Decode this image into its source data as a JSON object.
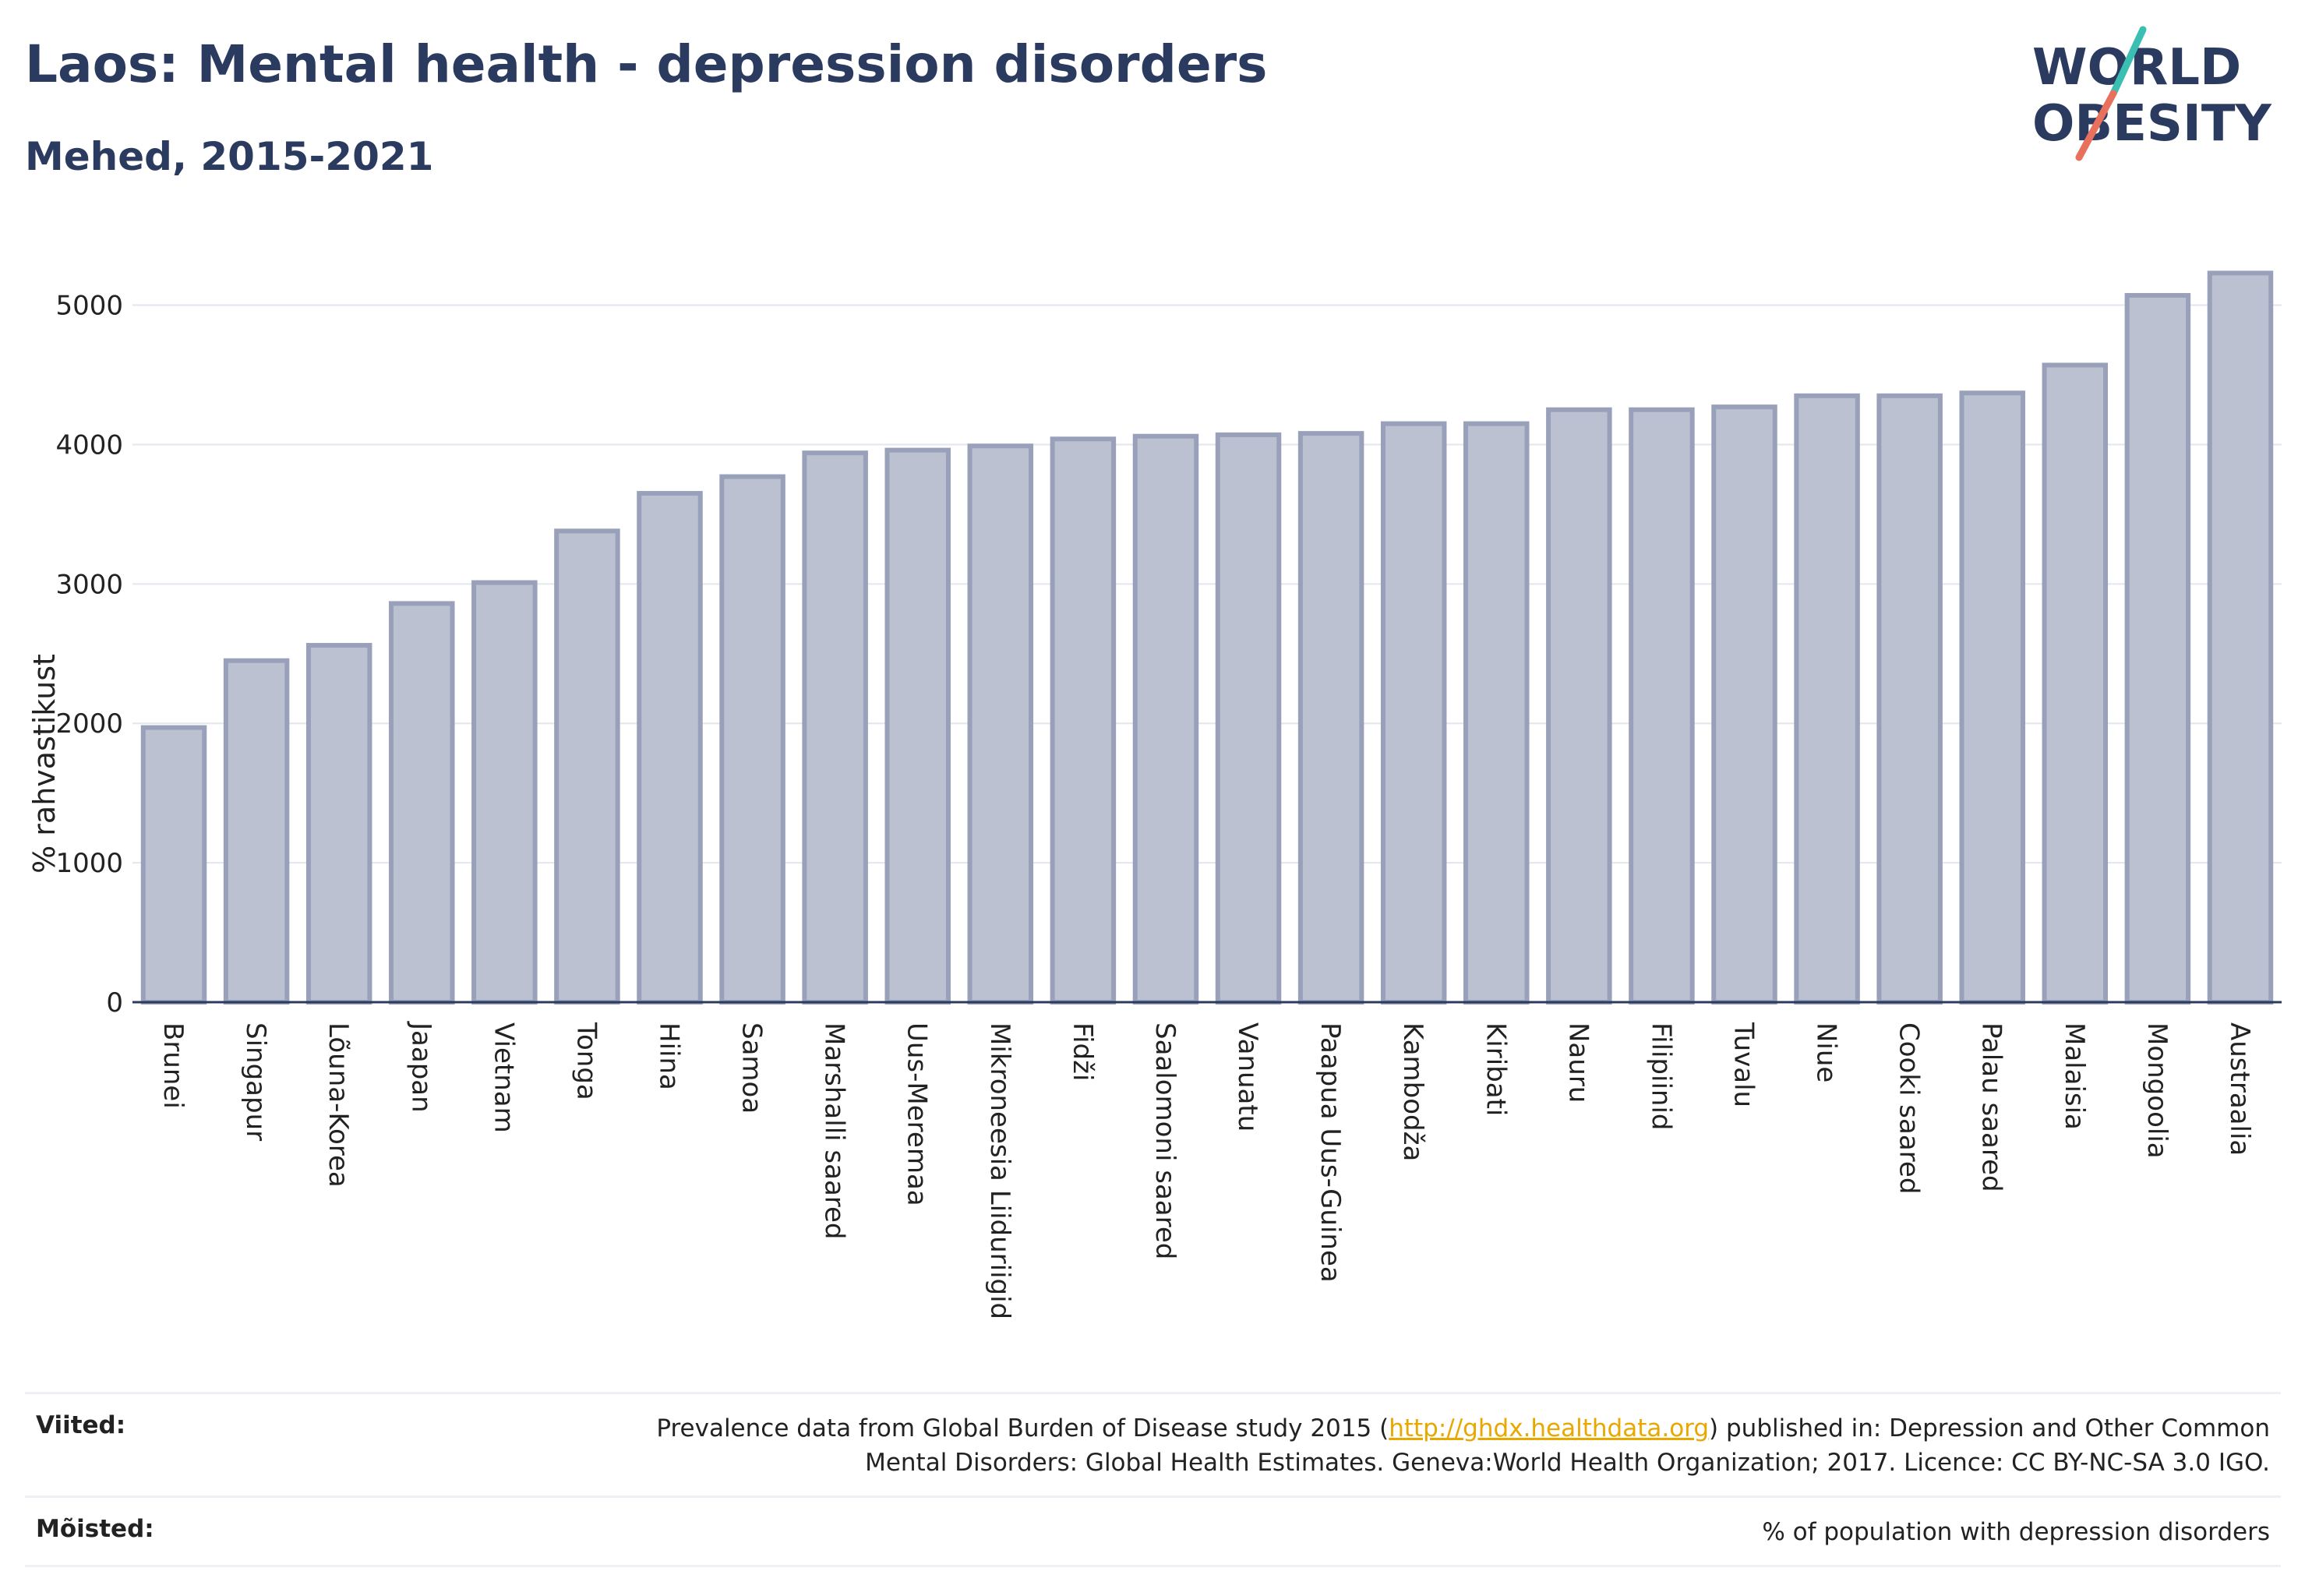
{
  "header": {
    "title": "Laos: Mental health - depression disorders",
    "subtitle": "Mehed, 2015-2021"
  },
  "logo": {
    "line1": "WORLD",
    "line2": "OBESITY",
    "accent_colors": [
      "#3bbfb3",
      "#e8705c"
    ],
    "text_color": "#2b3a5f"
  },
  "chart_data": {
    "type": "bar",
    "ylabel": "% rahvastikust",
    "xlabel": "",
    "ylim": [
      0,
      5400
    ],
    "yticks": [
      0,
      1000,
      2000,
      3000,
      4000,
      5000
    ],
    "grid": true,
    "bar_color": "#bcc1d1",
    "bar_edge_color": "#98a0ba",
    "categories": [
      "Brunei",
      "Singapur",
      "Lõuna-Korea",
      "Jaapan",
      "Vietnam",
      "Tonga",
      "Hiina",
      "Samoa",
      "Marshalli saared",
      "Uus-Meremaa",
      "Mikroneesia Liiduriigid",
      "Fidži",
      "Saalomoni saared",
      "Vanuatu",
      "Paapua Uus-Guinea",
      "Kambodža",
      "Kiribati",
      "Nauru",
      "Filipiinid",
      "Tuvalu",
      "Niue",
      "Cooki saared",
      "Palau saared",
      "Malaisia",
      "Mongoolia",
      "Austraalia"
    ],
    "values": [
      1970,
      2450,
      2560,
      2860,
      3010,
      3380,
      3650,
      3770,
      3940,
      3960,
      3990,
      4040,
      4060,
      4070,
      4080,
      4150,
      4150,
      4250,
      4250,
      4270,
      4350,
      4350,
      4370,
      4570,
      5070,
      5230
    ]
  },
  "footer": {
    "sources_label": "Viited:",
    "sources_text_before": "Prevalence data from Global Burden of Disease study 2015 (",
    "sources_link": "http://ghdx.healthdata.org",
    "sources_text_after": ") published in: Depression and Other Common Mental Disorders: Global Health Estimates. Geneva:World Health Organization; 2017. Licence: CC BY-NC-SA 3.0 IGO.",
    "definitions_label": "Mõisted:",
    "definitions_text": "% of population with depression disorders"
  }
}
